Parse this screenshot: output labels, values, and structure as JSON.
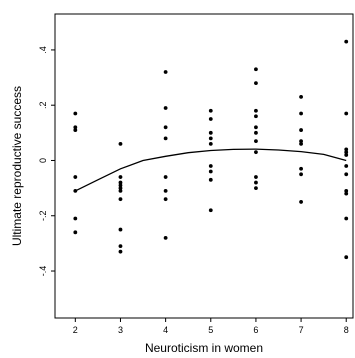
{
  "chart_data": {
    "type": "scatter",
    "xlabel": "Neuroticism in women",
    "ylabel": "Ultimate reproductive success",
    "xlim": [
      1.55,
      8.15
    ],
    "ylim": [
      -0.57,
      0.53
    ],
    "x_ticks": [
      2,
      3,
      4,
      5,
      6,
      7,
      8
    ],
    "x_tick_labels": [
      "2",
      "3",
      "4",
      "5",
      "6",
      "7",
      "8"
    ],
    "y_ticks": [
      -0.4,
      -0.2,
      0,
      0.2,
      0.4
    ],
    "y_tick_labels": [
      "-.4",
      "-.2",
      "0",
      ".2",
      ".4"
    ],
    "grid": false,
    "points": [
      [
        2,
        0.17
      ],
      [
        2,
        0.12
      ],
      [
        2,
        0.11
      ],
      [
        2,
        -0.06
      ],
      [
        2,
        -0.11
      ],
      [
        2,
        -0.21
      ],
      [
        2,
        -0.26
      ],
      [
        3,
        0.06
      ],
      [
        3,
        -0.06
      ],
      [
        3,
        -0.08
      ],
      [
        3,
        -0.09
      ],
      [
        3,
        -0.1
      ],
      [
        3,
        -0.11
      ],
      [
        3,
        -0.14
      ],
      [
        3,
        -0.25
      ],
      [
        3,
        -0.31
      ],
      [
        3,
        -0.33
      ],
      [
        4,
        0.32
      ],
      [
        4,
        0.19
      ],
      [
        4,
        0.12
      ],
      [
        4,
        0.08
      ],
      [
        4,
        -0.06
      ],
      [
        4,
        -0.11
      ],
      [
        4,
        -0.14
      ],
      [
        4,
        -0.28
      ],
      [
        5,
        0.18
      ],
      [
        5,
        0.15
      ],
      [
        5,
        0.1
      ],
      [
        5,
        0.08
      ],
      [
        5,
        0.06
      ],
      [
        5,
        -0.02
      ],
      [
        5,
        -0.04
      ],
      [
        5,
        -0.07
      ],
      [
        5,
        -0.18
      ],
      [
        6,
        0.33
      ],
      [
        6,
        0.28
      ],
      [
        6,
        0.18
      ],
      [
        6,
        0.16
      ],
      [
        6,
        0.12
      ],
      [
        6,
        0.1
      ],
      [
        6,
        0.07
      ],
      [
        6,
        0.03
      ],
      [
        6,
        -0.06
      ],
      [
        6,
        -0.08
      ],
      [
        6,
        -0.1
      ],
      [
        7,
        0.23
      ],
      [
        7,
        0.17
      ],
      [
        7,
        0.11
      ],
      [
        7,
        0.07
      ],
      [
        7,
        0.06
      ],
      [
        7,
        -0.03
      ],
      [
        7,
        -0.05
      ],
      [
        7,
        -0.15
      ],
      [
        8,
        0.43
      ],
      [
        8,
        0.17
      ],
      [
        8,
        0.04
      ],
      [
        8,
        0.03
      ],
      [
        8,
        0.02
      ],
      [
        8,
        -0.02
      ],
      [
        8,
        -0.05
      ],
      [
        8,
        -0.11
      ],
      [
        8,
        -0.12
      ],
      [
        8,
        -0.21
      ],
      [
        8,
        -0.35
      ]
    ],
    "fit_curve": {
      "type": "quadratic",
      "x": [
        2,
        2.5,
        3,
        3.5,
        4,
        4.5,
        5,
        5.5,
        6,
        6.5,
        7,
        7.5,
        8
      ],
      "y": [
        -0.11,
        -0.07,
        -0.03,
        0.0,
        0.015,
        0.028,
        0.036,
        0.04,
        0.041,
        0.038,
        0.032,
        0.022,
        0.0
      ]
    }
  }
}
